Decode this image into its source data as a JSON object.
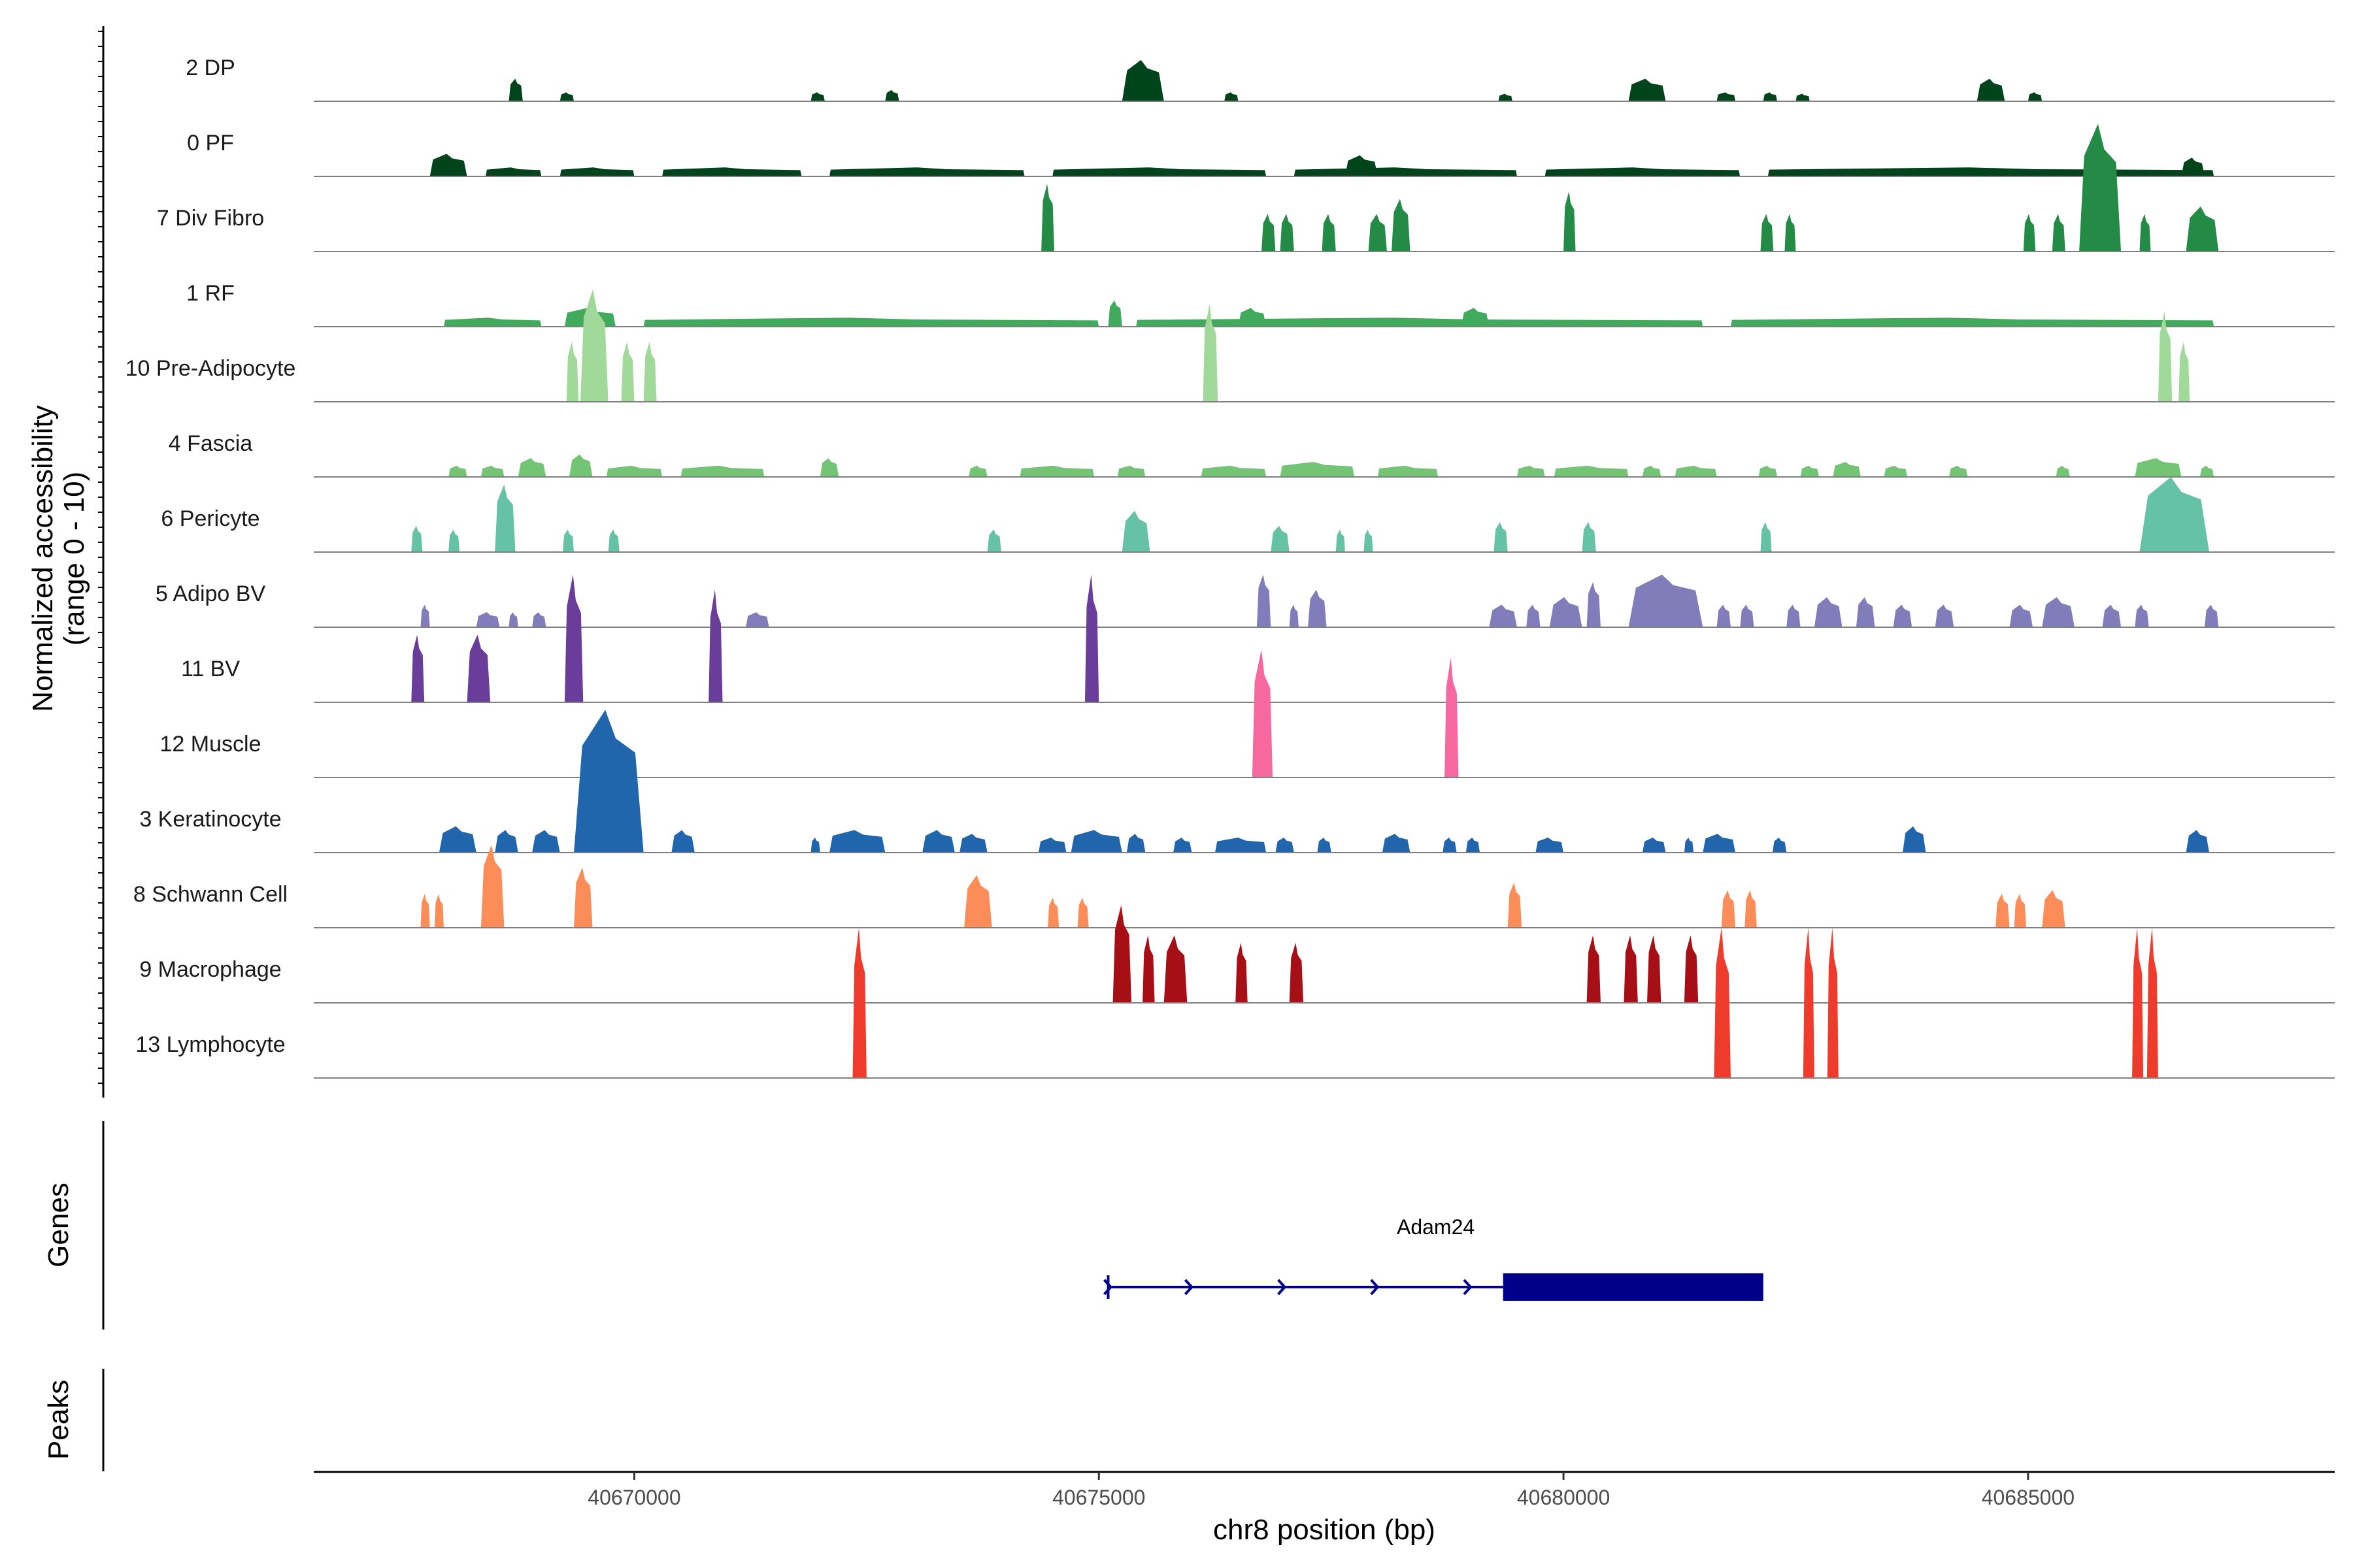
{
  "chart_data": {
    "type": "area",
    "xlabel": "chr8 position (bp)",
    "ylabel_lines": [
      "Normalized accessibility",
      "(range 0 - 10)"
    ],
    "ylim": [
      0,
      10
    ],
    "xlim": [
      40666550,
      40688300
    ],
    "x_ticks": [
      {
        "value": 40670000,
        "label": "40670000"
      },
      {
        "value": 40675000,
        "label": "40675000"
      },
      {
        "value": 40680000,
        "label": "40680000"
      },
      {
        "value": 40685000,
        "label": "40685000"
      }
    ],
    "series": [
      {
        "name": "2 DP",
        "color": "#00441b",
        "peaks": [
          [
            40668650,
            40668800,
            0.3
          ],
          [
            40669200,
            40669350,
            0.12
          ],
          [
            40671900,
            40672050,
            0.12
          ],
          [
            40672700,
            40672850,
            0.15
          ],
          [
            40675250,
            40675700,
            0.55
          ],
          [
            40676350,
            40676500,
            0.12
          ],
          [
            40679300,
            40679450,
            0.1
          ],
          [
            40680700,
            40681100,
            0.3
          ],
          [
            40681650,
            40681850,
            0.12
          ],
          [
            40682150,
            40682300,
            0.12
          ],
          [
            40682500,
            40682650,
            0.1
          ],
          [
            40684450,
            40684750,
            0.3
          ],
          [
            40685000,
            40685150,
            0.12
          ]
        ]
      },
      {
        "name": "0 PF",
        "color": "#00441b",
        "peaks": [
          [
            40667800,
            40668200,
            0.3
          ],
          [
            40668400,
            40669000,
            0.12
          ],
          [
            40669200,
            40670000,
            0.12
          ],
          [
            40670300,
            40671800,
            0.12
          ],
          [
            40672100,
            40674200,
            0.12
          ],
          [
            40674500,
            40676800,
            0.12
          ],
          [
            40677100,
            40679500,
            0.12
          ],
          [
            40677650,
            40678000,
            0.28
          ],
          [
            40679800,
            40681900,
            0.12
          ],
          [
            40682200,
            40687000,
            0.12
          ],
          [
            40686650,
            40686900,
            0.25
          ]
        ]
      },
      {
        "name": "7 Div Fibro",
        "color": "#238b45",
        "peaks": [
          [
            40674380,
            40674520,
            0.9
          ],
          [
            40676750,
            40676900,
            0.5
          ],
          [
            40676950,
            40677100,
            0.5
          ],
          [
            40677400,
            40677550,
            0.5
          ],
          [
            40677900,
            40678100,
            0.5
          ],
          [
            40678150,
            40678350,
            0.7
          ],
          [
            40680000,
            40680130,
            0.8
          ],
          [
            40682120,
            40682260,
            0.5
          ],
          [
            40682380,
            40682500,
            0.5
          ],
          [
            40684950,
            40685080,
            0.5
          ],
          [
            40685260,
            40685400,
            0.5
          ],
          [
            40685550,
            40686000,
            1.7
          ],
          [
            40686200,
            40686320,
            0.5
          ],
          [
            40686700,
            40687050,
            0.6
          ]
        ]
      },
      {
        "name": "1 RF",
        "color": "#41ab5d",
        "peaks": [
          [
            40667950,
            40669000,
            0.12
          ],
          [
            40669250,
            40669800,
            0.25
          ],
          [
            40670100,
            40675000,
            0.12
          ],
          [
            40675100,
            40675250,
            0.35
          ],
          [
            40675400,
            40681500,
            0.12
          ],
          [
            40676500,
            40676800,
            0.25
          ],
          [
            40678900,
            40679200,
            0.25
          ],
          [
            40681800,
            40687000,
            0.12
          ]
        ]
      },
      {
        "name": "10 Pre-Adipocyte",
        "color": "#a1d99b",
        "peaks": [
          [
            40669270,
            40669400,
            0.8
          ],
          [
            40669420,
            40669720,
            1.5
          ],
          [
            40669860,
            40670000,
            0.8
          ],
          [
            40670100,
            40670240,
            0.8
          ],
          [
            40676120,
            40676280,
            1.3
          ],
          [
            40686400,
            40686550,
            1.2
          ],
          [
            40686620,
            40686740,
            0.8
          ]
        ]
      },
      {
        "name": "4 Fascia",
        "color": "#74c476",
        "peaks": [
          [
            40668000,
            40668200,
            0.15
          ],
          [
            40668350,
            40668600,
            0.15
          ],
          [
            40668750,
            40669050,
            0.25
          ],
          [
            40669300,
            40669550,
            0.3
          ],
          [
            40669700,
            40670300,
            0.15
          ],
          [
            40670500,
            40671400,
            0.15
          ],
          [
            40672000,
            40672200,
            0.25
          ],
          [
            40673600,
            40673800,
            0.15
          ],
          [
            40674150,
            40674950,
            0.15
          ],
          [
            40675200,
            40675500,
            0.15
          ],
          [
            40676100,
            40676800,
            0.15
          ],
          [
            40676950,
            40677750,
            0.2
          ],
          [
            40678000,
            40678650,
            0.15
          ],
          [
            40679500,
            40679800,
            0.15
          ],
          [
            40679900,
            40680700,
            0.15
          ],
          [
            40680850,
            40681050,
            0.15
          ],
          [
            40681200,
            40681650,
            0.15
          ],
          [
            40682100,
            40682300,
            0.15
          ],
          [
            40682550,
            40682750,
            0.15
          ],
          [
            40682900,
            40683200,
            0.2
          ],
          [
            40683450,
            40683700,
            0.15
          ],
          [
            40684150,
            40684350,
            0.15
          ],
          [
            40685300,
            40685450,
            0.15
          ],
          [
            40686150,
            40686650,
            0.25
          ],
          [
            40686850,
            40687000,
            0.15
          ]
        ]
      },
      {
        "name": "6 Pericyte",
        "color": "#66c2a4",
        "peaks": [
          [
            40667600,
            40667720,
            0.35
          ],
          [
            40668000,
            40668120,
            0.3
          ],
          [
            40668500,
            40668720,
            0.9
          ],
          [
            40669230,
            40669350,
            0.3
          ],
          [
            40669720,
            40669840,
            0.3
          ],
          [
            40673800,
            40673950,
            0.3
          ],
          [
            40675250,
            40675550,
            0.55
          ],
          [
            40676850,
            40677050,
            0.35
          ],
          [
            40677550,
            40677650,
            0.3
          ],
          [
            40677850,
            40677950,
            0.3
          ],
          [
            40679250,
            40679400,
            0.4
          ],
          [
            40680200,
            40680350,
            0.4
          ],
          [
            40682120,
            40682240,
            0.4
          ],
          [
            40686200,
            40686950,
            1.0
          ]
        ]
      },
      {
        "name": "5 Adipo BV",
        "color": "#807dba",
        "peaks": [
          [
            40667700,
            40667800,
            0.3
          ],
          [
            40668300,
            40668550,
            0.2
          ],
          [
            40668650,
            40668750,
            0.2
          ],
          [
            40668900,
            40669050,
            0.2
          ],
          [
            40671200,
            40671450,
            0.2
          ],
          [
            40676700,
            40676850,
            0.7
          ],
          [
            40677050,
            40677150,
            0.3
          ],
          [
            40677250,
            40677450,
            0.5
          ],
          [
            40679200,
            40679500,
            0.3
          ],
          [
            40679600,
            40679750,
            0.3
          ],
          [
            40679850,
            40680200,
            0.4
          ],
          [
            40680250,
            40680400,
            0.6
          ],
          [
            40680700,
            40681500,
            0.7
          ],
          [
            40681650,
            40681800,
            0.3
          ],
          [
            40681900,
            40682050,
            0.3
          ],
          [
            40682400,
            40682550,
            0.3
          ],
          [
            40682700,
            40683000,
            0.4
          ],
          [
            40683150,
            40683350,
            0.4
          ],
          [
            40683550,
            40683750,
            0.3
          ],
          [
            40684000,
            40684200,
            0.3
          ],
          [
            40684800,
            40685050,
            0.3
          ],
          [
            40685150,
            40685500,
            0.4
          ],
          [
            40685800,
            40686000,
            0.3
          ],
          [
            40686150,
            40686300,
            0.3
          ],
          [
            40686900,
            40687050,
            0.3
          ]
        ]
      },
      {
        "name": "11 BV",
        "color": "#6a3d9a",
        "peaks": [
          [
            40667600,
            40667740,
            0.9
          ],
          [
            40668200,
            40668450,
            0.9
          ],
          [
            40669250,
            40669450,
            1.7
          ],
          [
            40670800,
            40670950,
            1.5
          ],
          [
            40674850,
            40675000,
            1.7
          ]
        ]
      },
      {
        "name": "12 Muscle",
        "color": "#f768a1",
        "peaks": [
          [
            40676650,
            40676870,
            1.7
          ],
          [
            40678720,
            40678870,
            1.6
          ]
        ]
      },
      {
        "name": "3 Keratinocyte",
        "color": "#2166ac",
        "peaks": [
          [
            40667900,
            40668300,
            0.35
          ],
          [
            40668500,
            40668750,
            0.3
          ],
          [
            40668900,
            40669200,
            0.3
          ],
          [
            40669350,
            40670100,
            1.9
          ],
          [
            40670400,
            40670650,
            0.3
          ],
          [
            40671900,
            40672000,
            0.2
          ],
          [
            40672100,
            40672700,
            0.3
          ],
          [
            40673100,
            40673450,
            0.3
          ],
          [
            40673500,
            40673800,
            0.25
          ],
          [
            40674350,
            40674650,
            0.2
          ],
          [
            40674700,
            40675250,
            0.3
          ],
          [
            40675300,
            40675500,
            0.25
          ],
          [
            40675800,
            40676000,
            0.2
          ],
          [
            40676250,
            40676800,
            0.2
          ],
          [
            40676900,
            40677100,
            0.2
          ],
          [
            40677350,
            40677500,
            0.2
          ],
          [
            40678050,
            40678350,
            0.25
          ],
          [
            40678700,
            40678850,
            0.2
          ],
          [
            40678950,
            40679100,
            0.2
          ],
          [
            40679700,
            40680000,
            0.2
          ],
          [
            40680850,
            40681100,
            0.2
          ],
          [
            40681300,
            40681400,
            0.2
          ],
          [
            40681500,
            40681850,
            0.25
          ],
          [
            40682250,
            40682400,
            0.2
          ],
          [
            40683650,
            40683900,
            0.35
          ],
          [
            40686700,
            40686950,
            0.3
          ]
        ]
      },
      {
        "name": "8 Schwann Cell",
        "color": "#fc8d59",
        "peaks": [
          [
            40667700,
            40667800,
            0.45
          ],
          [
            40667850,
            40667950,
            0.45
          ],
          [
            40668350,
            40668600,
            1.1
          ],
          [
            40669350,
            40669550,
            0.8
          ],
          [
            40673550,
            40673850,
            0.7
          ],
          [
            40674450,
            40674570,
            0.4
          ],
          [
            40674770,
            40674890,
            0.4
          ],
          [
            40679400,
            40679550,
            0.6
          ],
          [
            40681700,
            40681850,
            0.5
          ],
          [
            40681950,
            40682080,
            0.5
          ],
          [
            40684650,
            40684800,
            0.45
          ],
          [
            40684850,
            40684980,
            0.45
          ],
          [
            40685150,
            40685400,
            0.5
          ]
        ]
      },
      {
        "name": "9 Macrophage",
        "color": "#a50f15",
        "peaks": [
          [
            40675150,
            40675350,
            1.3
          ],
          [
            40675470,
            40675600,
            0.9
          ],
          [
            40675700,
            40675950,
            0.9
          ],
          [
            40676470,
            40676600,
            0.8
          ],
          [
            40677050,
            40677200,
            0.8
          ],
          [
            40680250,
            40680400,
            0.9
          ],
          [
            40680650,
            40680800,
            0.9
          ],
          [
            40680900,
            40681050,
            0.9
          ],
          [
            40681300,
            40681450,
            0.9
          ]
        ]
      },
      {
        "name": "13 Lymphocyte",
        "color": "#ef3b2c",
        "peaks": [
          [
            40672350,
            40672500,
            2.0
          ],
          [
            40681620,
            40681800,
            2.0
          ],
          [
            40682580,
            40682700,
            2.0
          ],
          [
            40682840,
            40682960,
            2.0
          ],
          [
            40686120,
            40686240,
            2.0
          ],
          [
            40686280,
            40686400,
            2.0
          ]
        ]
      }
    ],
    "gene_track_label": "Genes",
    "peaks_track_label": "Peaks",
    "gene": {
      "name": "Adam24",
      "strand": "+",
      "start": 40675100,
      "end": 40682150,
      "cds_start": 40679350,
      "cds_end": 40682150,
      "arrows": [
        40676000,
        40677000,
        40678000,
        40679000
      ]
    },
    "grid": false
  }
}
